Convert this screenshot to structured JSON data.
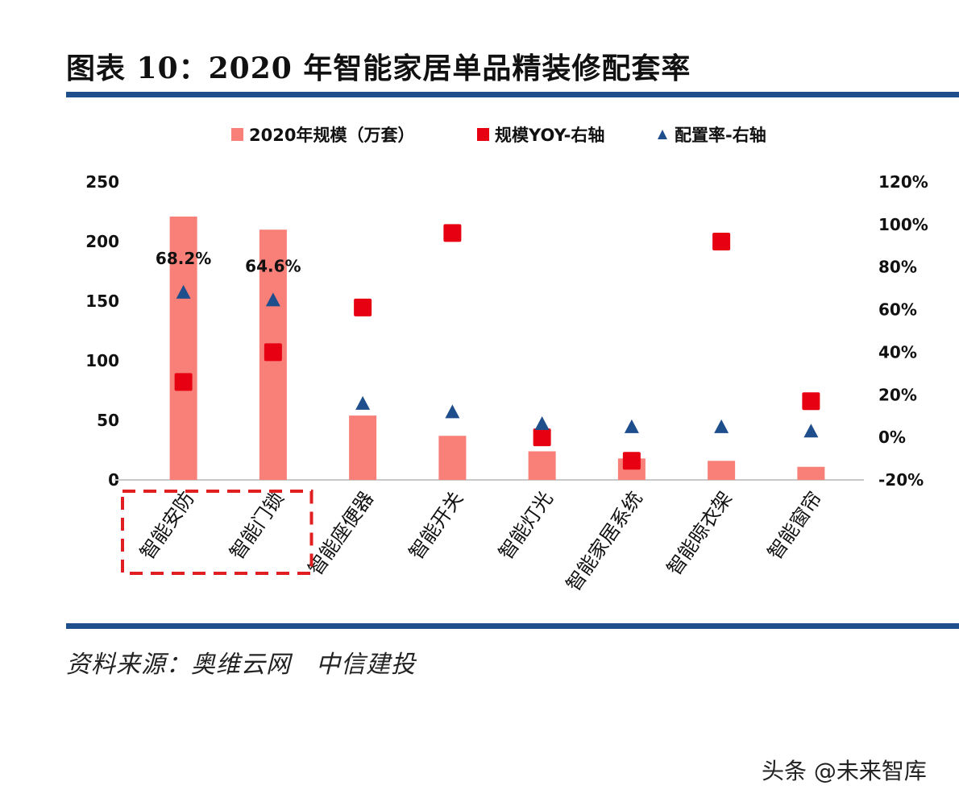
{
  "header": {
    "title": "图表 10：2020 年智能家居单品精装修配套率"
  },
  "footer": {
    "source": "资料来源：奥维云网　中信建投",
    "watermark": "头条 @未来智库"
  },
  "colors": {
    "bar": "#f88078",
    "yoy": "#e60012",
    "rate": "#1f4e8c",
    "rule": "#1f4e8c",
    "highlight_box": "#e02020"
  },
  "chart_data": {
    "type": "bar",
    "title": "2020 年智能家居单品精装修配套率",
    "categories": [
      "智能安防",
      "智能门锁",
      "智能座便器",
      "智能开关",
      "智能灯光",
      "智能家居系统",
      "智能晾衣架",
      "智能窗帘"
    ],
    "series": [
      {
        "name": "2020年规模（万套）",
        "type": "bar",
        "axis": "left",
        "values": [
          221,
          210,
          54,
          37,
          24,
          18,
          16,
          11
        ]
      },
      {
        "name": "规模YOY-右轴",
        "type": "scatter",
        "marker": "square",
        "axis": "right",
        "values": [
          26,
          40,
          61,
          96,
          0,
          -11,
          92,
          17
        ]
      },
      {
        "name": "配置率-右轴",
        "type": "scatter",
        "marker": "triangle",
        "axis": "right",
        "values": [
          68.2,
          64.6,
          16,
          12,
          6.5,
          5,
          5,
          3
        ]
      }
    ],
    "data_labels": [
      {
        "category": "智能安防",
        "series": "配置率-右轴",
        "text": "68.2%"
      },
      {
        "category": "智能门锁",
        "series": "配置率-右轴",
        "text": "64.6%"
      }
    ],
    "left_axis": {
      "ylim": [
        0,
        250
      ],
      "ticks": [
        "0",
        "50",
        "100",
        "150",
        "200",
        "250"
      ]
    },
    "right_axis": {
      "ylim": [
        -20,
        120
      ],
      "ticks": [
        "-20%",
        "0%",
        "20%",
        "40%",
        "60%",
        "80%",
        "100%",
        "120%"
      ]
    },
    "highlight": {
      "categories": [
        "智能安防",
        "智能门锁"
      ],
      "style": "dashed-box"
    },
    "legend_position": "top",
    "grid": false,
    "xlabel": "",
    "ylabel": ""
  }
}
